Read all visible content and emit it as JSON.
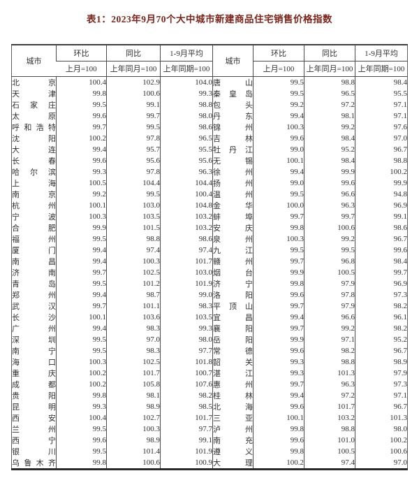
{
  "title": "表1：2023年9月70个大中城市新建商品住宅销售价格指数",
  "colors": {
    "title_text": "#7a241c",
    "body_text": "#2e2e2e",
    "table_border": "#4a4a4a",
    "background": "#ffffff"
  },
  "header": {
    "city_label": "城市",
    "columns": [
      {
        "label": "环比",
        "sublabel": "上月=100"
      },
      {
        "label": "同比",
        "sublabel": "上年同月=100"
      },
      {
        "label": "1-9月平均",
        "sublabel": "上年同期=100"
      }
    ]
  },
  "chart_data": {
    "type": "table",
    "title": "表1：2023年9月70个大中城市新建商品住宅销售价格指数",
    "columns": [
      "城市",
      "环比(上月=100)",
      "同比(上年同月=100)",
      "1-9月平均(上年同期=100)"
    ],
    "note": "two side-by-side halves of the same table, 35 rows each"
  },
  "table": {
    "left": [
      {
        "city": "北京",
        "mom": "100.4",
        "yoy": "102.9",
        "avg": "104.0"
      },
      {
        "city": "天津",
        "mom": "99.8",
        "yoy": "100.6",
        "avg": "99.3"
      },
      {
        "city": "石家庄",
        "mom": "99.5",
        "yoy": "99.1",
        "avg": "98.8"
      },
      {
        "city": "太原",
        "mom": "99.6",
        "yoy": "99.7",
        "avg": "98.0"
      },
      {
        "city": "呼和浩特",
        "mom": "99.7",
        "yoy": "99.5",
        "avg": "98.6"
      },
      {
        "city": "沈阳",
        "mom": "100.2",
        "yoy": "97.8",
        "avg": "96.5"
      },
      {
        "city": "大连",
        "mom": "99.4",
        "yoy": "95.7",
        "avg": "95.5"
      },
      {
        "city": "长春",
        "mom": "99.6",
        "yoy": "95.6",
        "avg": "95.6"
      },
      {
        "city": "哈尔滨",
        "mom": "99.3",
        "yoy": "97.8",
        "avg": "96.3"
      },
      {
        "city": "上海",
        "mom": "100.5",
        "yoy": "104.4",
        "avg": "104.4"
      },
      {
        "city": "南京",
        "mom": "99.2",
        "yoy": "99.5",
        "avg": "100.4"
      },
      {
        "city": "杭州",
        "mom": "100.1",
        "yoy": "103.0",
        "avg": "104.8"
      },
      {
        "city": "宁波",
        "mom": "100.3",
        "yoy": "103.5",
        "avg": "103.2"
      },
      {
        "city": "合肥",
        "mom": "99.9",
        "yoy": "101.5",
        "avg": "103.2"
      },
      {
        "city": "福州",
        "mom": "99.5",
        "yoy": "98.8",
        "avg": "98.6"
      },
      {
        "city": "厦门",
        "mom": "99.4",
        "yoy": "97.4",
        "avg": "97.4"
      },
      {
        "city": "南昌",
        "mom": "99.4",
        "yoy": "100.3",
        "avg": "101.7"
      },
      {
        "city": "济南",
        "mom": "99.7",
        "yoy": "102.5",
        "avg": "103.0"
      },
      {
        "city": "青岛",
        "mom": "99.5",
        "yoy": "101.2",
        "avg": "101.9"
      },
      {
        "city": "郑州",
        "mom": "99.4",
        "yoy": "98.7",
        "avg": "99.0"
      },
      {
        "city": "武汉",
        "mom": "99.7",
        "yoy": "101.1",
        "avg": "98.3"
      },
      {
        "city": "长沙",
        "mom": "100.1",
        "yoy": "103.6",
        "avg": "103.5"
      },
      {
        "city": "广州",
        "mom": "99.4",
        "yoy": "98.3",
        "avg": "99.3"
      },
      {
        "city": "深圳",
        "mom": "99.5",
        "yoy": "97.0",
        "avg": "98.0"
      },
      {
        "city": "南宁",
        "mom": "99.5",
        "yoy": "98.3",
        "avg": "97.7"
      },
      {
        "city": "海口",
        "mom": "100.3",
        "yoy": "102.5",
        "avg": "101.8"
      },
      {
        "city": "重庆",
        "mom": "100.2",
        "yoy": "101.7",
        "avg": "100.7"
      },
      {
        "city": "成都",
        "mom": "100.2",
        "yoy": "105.8",
        "avg": "107.6"
      },
      {
        "city": "贵阳",
        "mom": "99.8",
        "yoy": "98.1",
        "avg": "98.2"
      },
      {
        "city": "昆明",
        "mom": "99.3",
        "yoy": "98.9",
        "avg": "98.5"
      },
      {
        "city": "西安",
        "mom": "100.4",
        "yoy": "102.7",
        "avg": "101.7"
      },
      {
        "city": "兰州",
        "mom": "99.5",
        "yoy": "100.3",
        "avg": "97.7"
      },
      {
        "city": "西宁",
        "mom": "99.6",
        "yoy": "98.9",
        "avg": "99.1"
      },
      {
        "city": "银川",
        "mom": "99.5",
        "yoy": "101.4",
        "avg": "101.9"
      },
      {
        "city": "乌鲁木齐",
        "mom": "99.8",
        "yoy": "100.6",
        "avg": "100.9"
      }
    ],
    "right": [
      {
        "city": "唐山",
        "mom": "99.5",
        "yoy": "98.8",
        "avg": "98.4"
      },
      {
        "city": "秦皇岛",
        "mom": "99.5",
        "yoy": "96.5",
        "avg": "95.5"
      },
      {
        "city": "包头",
        "mom": "99.2",
        "yoy": "97.2",
        "avg": "97.1"
      },
      {
        "city": "丹东",
        "mom": "99.4",
        "yoy": "98.1",
        "avg": "97.1"
      },
      {
        "city": "锦州",
        "mom": "100.3",
        "yoy": "99.2",
        "avg": "97.6"
      },
      {
        "city": "吉林",
        "mom": "99.6",
        "yoy": "98.4",
        "avg": "97.0"
      },
      {
        "city": "牡丹江",
        "mom": "99.0",
        "yoy": "95.2",
        "avg": "96.7"
      },
      {
        "city": "无锡",
        "mom": "100.1",
        "yoy": "98.4",
        "avg": "98.8"
      },
      {
        "city": "徐州",
        "mom": "99.4",
        "yoy": "99.9",
        "avg": "100.2"
      },
      {
        "city": "扬州",
        "mom": "99.0",
        "yoy": "99.6",
        "avg": "99.9"
      },
      {
        "city": "温州",
        "mom": "99.5",
        "yoy": "96.6",
        "avg": "94.8"
      },
      {
        "city": "金华",
        "mom": "100.0",
        "yoy": "96.3",
        "avg": "96.9"
      },
      {
        "city": "蚌埠",
        "mom": "99.7",
        "yoy": "99.7",
        "avg": "99.1"
      },
      {
        "city": "安庆",
        "mom": "99.8",
        "yoy": "100.6",
        "avg": "98.6"
      },
      {
        "city": "泉州",
        "mom": "100.3",
        "yoy": "99.2",
        "avg": "96.7"
      },
      {
        "city": "九江",
        "mom": "99.5",
        "yoy": "99.5",
        "avg": "99.6"
      },
      {
        "city": "赣州",
        "mom": "99.7",
        "yoy": "96.8",
        "avg": "98.4"
      },
      {
        "city": "烟台",
        "mom": "99.9",
        "yoy": "100.5",
        "avg": "99.7"
      },
      {
        "city": "济宁",
        "mom": "99.8",
        "yoy": "97.9",
        "avg": "96.9"
      },
      {
        "city": "洛阳",
        "mom": "99.6",
        "yoy": "97.8",
        "avg": "97.3"
      },
      {
        "city": "平顶山",
        "mom": "99.7",
        "yoy": "97.9",
        "avg": "98.2"
      },
      {
        "city": "宜昌",
        "mom": "99.4",
        "yoy": "96.6",
        "avg": "96.1"
      },
      {
        "city": "襄阳",
        "mom": "99.7",
        "yoy": "99.2",
        "avg": "98.2"
      },
      {
        "city": "岳阳",
        "mom": "99.9",
        "yoy": "97.1",
        "avg": "95.2"
      },
      {
        "city": "常德",
        "mom": "99.6",
        "yoy": "98.2",
        "avg": "96.7"
      },
      {
        "city": "韶关",
        "mom": "99.3",
        "yoy": "98.8",
        "avg": "98.9"
      },
      {
        "city": "湛江",
        "mom": "99.3",
        "yoy": "101.3",
        "avg": "97.9"
      },
      {
        "city": "惠州",
        "mom": "99.7",
        "yoy": "96.3",
        "avg": "97.3"
      },
      {
        "city": "桂林",
        "mom": "99.4",
        "yoy": "97.2",
        "avg": "97.1"
      },
      {
        "city": "北海",
        "mom": "99.6",
        "yoy": "101.7",
        "avg": "96.7"
      },
      {
        "city": "三亚",
        "mom": "100.1",
        "yoy": "103.2",
        "avg": "101.3"
      },
      {
        "city": "泸州",
        "mom": "99.8",
        "yoy": "98.8",
        "avg": "98.0"
      },
      {
        "city": "南充",
        "mom": "99.6",
        "yoy": "101.0",
        "avg": "100.2"
      },
      {
        "city": "遵义",
        "mom": "99.8",
        "yoy": "100.5",
        "avg": "100.6"
      },
      {
        "city": "大理",
        "mom": "100.2",
        "yoy": "97.4",
        "avg": "97.0"
      }
    ]
  }
}
